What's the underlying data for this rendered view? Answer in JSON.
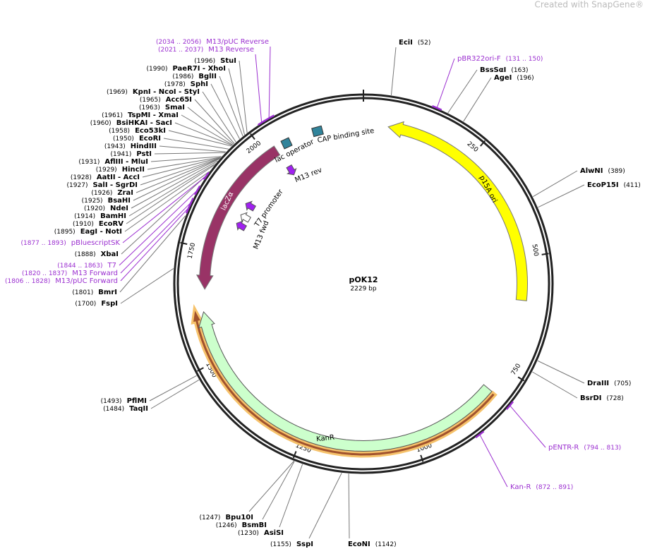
{
  "header": {
    "watermark": "Created with SnapGene®"
  },
  "plasmid": {
    "name": "pOK12",
    "length": "2229 bp"
  },
  "ticks": [
    "250",
    "500",
    "750",
    "1000",
    "1250",
    "1500",
    "1750",
    "2000"
  ],
  "features": [
    {
      "label": "p15A ori"
    },
    {
      "label": "KanR"
    },
    {
      "label": "lacZα"
    },
    {
      "label": "lac operator"
    },
    {
      "label": "CAP binding site"
    },
    {
      "label": "M13 rev"
    },
    {
      "label": "T7 promoter"
    },
    {
      "label": "M13 fwd"
    }
  ],
  "enzymes": [
    {
      "name": "StuI",
      "pos": "(1996)"
    },
    {
      "name": "PaeR7I - XhoI",
      "pos": "(1990)"
    },
    {
      "name": "BglII",
      "pos": "(1986)"
    },
    {
      "name": "SphI",
      "pos": "(1978)"
    },
    {
      "name": "KpnI - NcoI - StyI",
      "pos": "(1969)"
    },
    {
      "name": "Acc65I",
      "pos": "(1965)"
    },
    {
      "name": "SmaI",
      "pos": "(1963)"
    },
    {
      "name": "TspMI - XmaI",
      "pos": "(1961)"
    },
    {
      "name": "BsiHKAI - SacI",
      "pos": "(1960)"
    },
    {
      "name": "Eco53kI",
      "pos": "(1958)"
    },
    {
      "name": "EcoRI",
      "pos": "(1950)"
    },
    {
      "name": "HindIII",
      "pos": "(1943)"
    },
    {
      "name": "PstI",
      "pos": "(1941)"
    },
    {
      "name": "AflIII - MluI",
      "pos": "(1931)"
    },
    {
      "name": "HincII",
      "pos": "(1929)"
    },
    {
      "name": "AatII - AccI",
      "pos": "(1928)"
    },
    {
      "name": "SalI - SgrDI",
      "pos": "(1927)"
    },
    {
      "name": "ZraI",
      "pos": "(1926)"
    },
    {
      "name": "BsaHI",
      "pos": "(1925)"
    },
    {
      "name": "NdeI",
      "pos": "(1920)"
    },
    {
      "name": "BamHI",
      "pos": "(1914)"
    },
    {
      "name": "EcoRV",
      "pos": "(1910)"
    },
    {
      "name": "EagI - NotI",
      "pos": "(1895)"
    },
    {
      "name": "XbaI",
      "pos": "(1888)"
    },
    {
      "name": "BmrI",
      "pos": "(1801)"
    },
    {
      "name": "FspI",
      "pos": "(1700)"
    },
    {
      "name": "PflMI",
      "pos": "(1493)"
    },
    {
      "name": "TaqII",
      "pos": "(1484)"
    },
    {
      "name": "Bpu10I",
      "pos": "(1247)"
    },
    {
      "name": "BsmBI",
      "pos": "(1246)"
    },
    {
      "name": "AsiSI",
      "pos": "(1230)"
    },
    {
      "name": "SspI",
      "pos": "(1155)"
    },
    {
      "name": "EcoNI",
      "pos": "(1142)"
    },
    {
      "name": "EciI",
      "pos": "(52)"
    },
    {
      "name": "BssSαI",
      "pos": "(163)"
    },
    {
      "name": "AgeI",
      "pos": "(196)"
    },
    {
      "name": "AlwNI",
      "pos": "(389)"
    },
    {
      "name": "EcoP15I",
      "pos": "(411)"
    },
    {
      "name": "DraIII",
      "pos": "(705)"
    },
    {
      "name": "BsrDI",
      "pos": "(728)"
    }
  ],
  "primers": [
    {
      "name": "M13/pUC Reverse",
      "pos": "(2034 .. 2056)"
    },
    {
      "name": "M13 Reverse",
      "pos": "(2021 .. 2037)"
    },
    {
      "name": "pBluescriptSK",
      "pos": "(1877 .. 1893)"
    },
    {
      "name": "T7",
      "pos": "(1844 .. 1863)"
    },
    {
      "name": "M13 Forward",
      "pos": "(1820 .. 1837)"
    },
    {
      "name": "M13/pUC Forward",
      "pos": "(1806 .. 1828)"
    },
    {
      "name": "pBR322ori-F",
      "pos": "(131 .. 150)"
    },
    {
      "name": "pENTR-R",
      "pos": "(794 .. 813)"
    },
    {
      "name": "Kan-R",
      "pos": "(872 .. 891)"
    }
  ]
}
